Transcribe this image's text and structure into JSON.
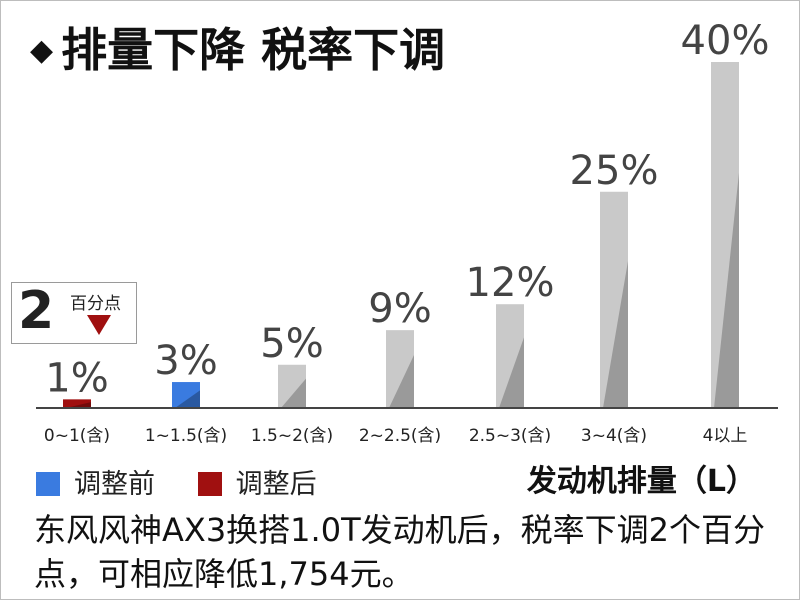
{
  "title": "排量下降 税率下调",
  "legend": {
    "before_label": "调整前",
    "after_label": "调整后",
    "before_color": "#3a7be0",
    "after_color": "#a01010"
  },
  "x_axis_title": "发动机排量（L）",
  "badge": {
    "value": "2",
    "unit": "百分点",
    "icon": "down-triangle-icon"
  },
  "description": "东风风神AX3换搭1.0T发动机后，税率下调2个百分点，可相应降低1,754元。",
  "chart_data": {
    "type": "bar",
    "categories": [
      "0~1(含)",
      "1~1.5(含)",
      "1.5~2(含)",
      "2~2.5(含)",
      "2.5~3(含)",
      "3~4(含)",
      "4以上"
    ],
    "values": [
      1,
      3,
      5,
      9,
      12,
      25,
      40
    ],
    "value_labels": [
      "1%",
      "3%",
      "5%",
      "9%",
      "12%",
      "25%",
      "40%"
    ],
    "ylim": [
      0,
      40
    ],
    "highlight": [
      {
        "category": "0~1(含)",
        "series": "调整后",
        "color": "#a01010"
      },
      {
        "category": "1~1.5(含)",
        "series": "调整前",
        "color": "#3a7be0"
      }
    ],
    "default_color": "#c9c9c9",
    "grid": false
  }
}
